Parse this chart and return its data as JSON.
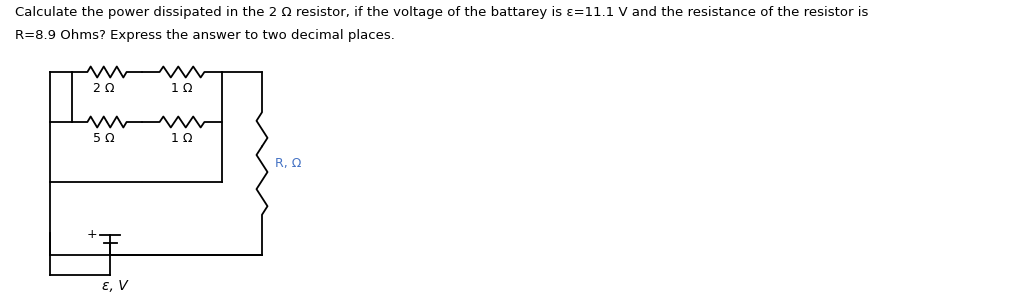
{
  "title_line1": "Calculate the power dissipated in the 2 Ω resistor, if the voltage of the battarey is ε=11.1 V and the resistance of the resistor is",
  "title_line2": "R=8.9 Ohms? Express the answer to two decimal places.",
  "bg_color": "#ffffff",
  "text_color": "#000000",
  "circuit_color": "#000000",
  "label_2ohm": "2 Ω",
  "label_1ohm_top": "1 Ω",
  "label_5ohm": "5 Ω",
  "label_1ohm_bot": "1 Ω",
  "label_R": "R, Ω",
  "label_battery": "ε, V",
  "label_plus": "+"
}
